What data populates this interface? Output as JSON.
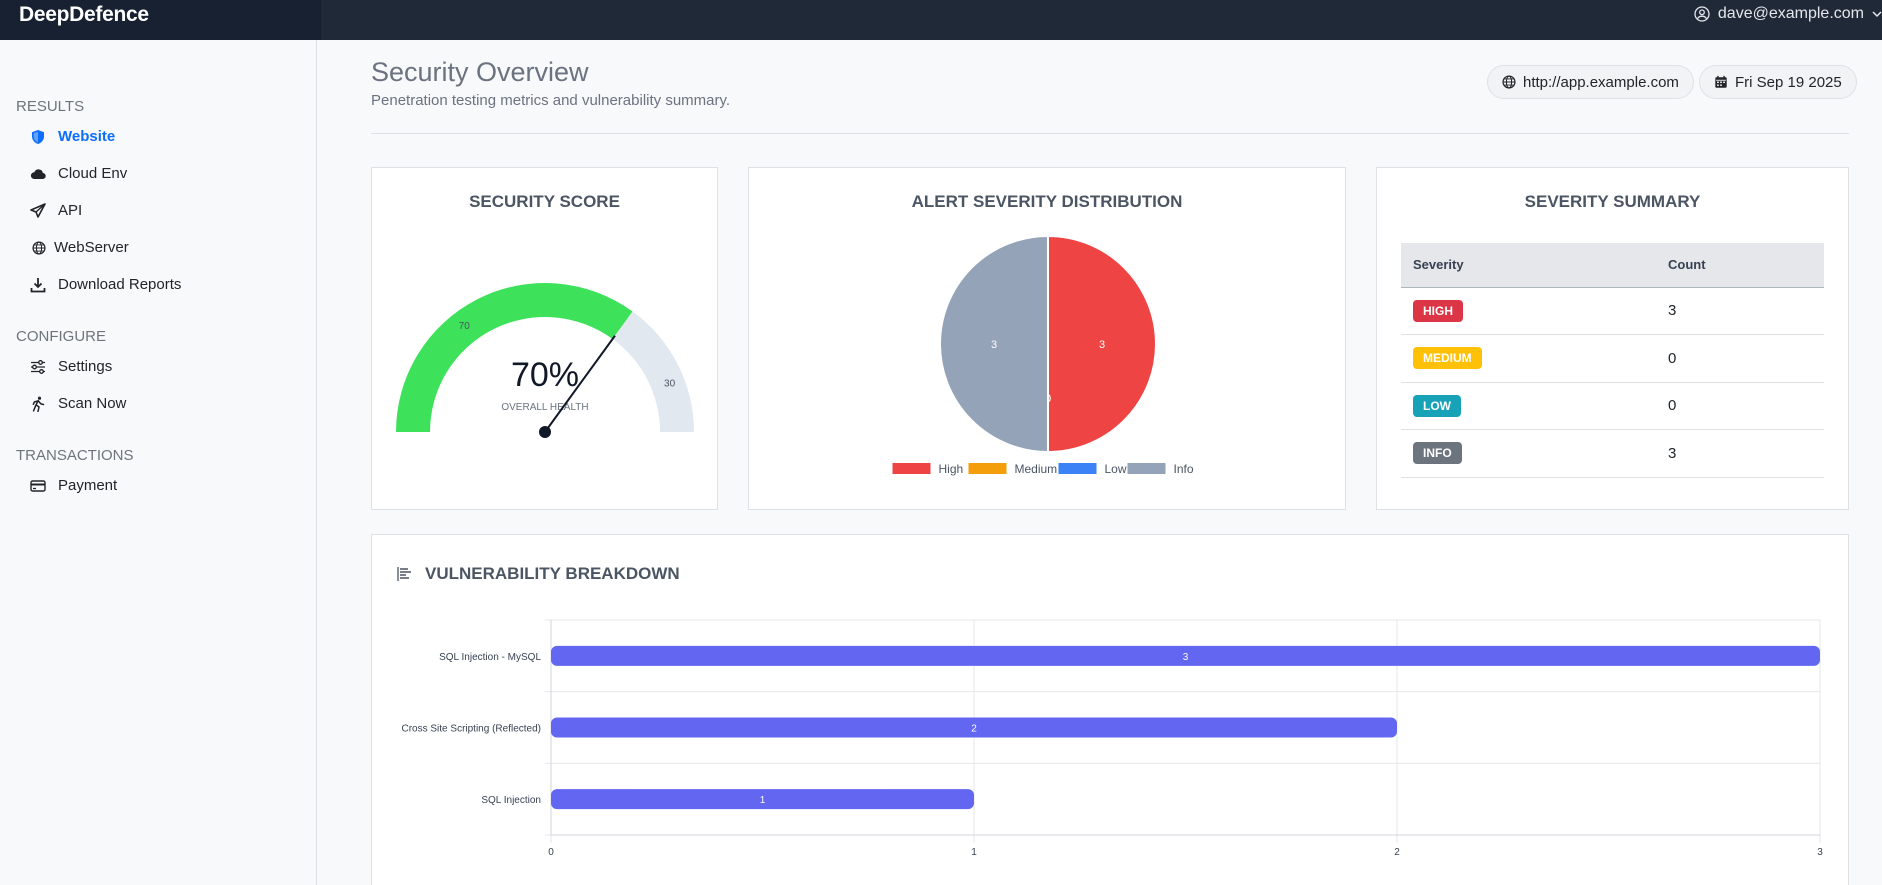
{
  "app": {
    "brand": "DeepDefence",
    "user_email": "dave@example.com"
  },
  "sidebar": {
    "sections": [
      {
        "title": "RESULTS",
        "items": [
          {
            "label": "Website",
            "icon": "shield-icon",
            "active": true
          },
          {
            "label": "Cloud Env",
            "icon": "cloud-icon"
          },
          {
            "label": "API",
            "icon": "send-icon"
          },
          {
            "label": "WebServer",
            "icon": "globe-icon"
          },
          {
            "label": "Download Reports",
            "icon": "download-icon"
          }
        ]
      },
      {
        "title": "CONFIGURE",
        "items": [
          {
            "label": "Settings",
            "icon": "sliders-icon"
          },
          {
            "label": "Scan Now",
            "icon": "running-icon"
          }
        ]
      },
      {
        "title": "TRANSACTIONS",
        "items": [
          {
            "label": "Payment",
            "icon": "credit-card-icon"
          }
        ]
      }
    ]
  },
  "header": {
    "title": "Security Overview",
    "subtitle": "Penetration testing metrics and vulnerability summary.",
    "target_url": "http://app.example.com",
    "date": "Fri Sep 19 2025"
  },
  "score_card": {
    "title": "SECURITY SCORE",
    "score_text": "70%",
    "caption": "OVERALL HEALTH",
    "score": 70,
    "remaining_label": "30",
    "score_label": "70",
    "colors": {
      "fill": "#3de15a",
      "rest": "#e2e8f0"
    }
  },
  "distribution_card": {
    "title": "ALERT SEVERITY DISTRIBUTION",
    "chart_data": {
      "type": "pie",
      "categories": [
        "High",
        "Medium",
        "Low",
        "Info"
      ],
      "values": [
        3,
        0,
        0,
        3
      ],
      "colors": [
        "#ef4444",
        "#f59e0b",
        "#3b82f6",
        "#94a3b8"
      ],
      "legend": "bottom"
    }
  },
  "summary_card": {
    "title": "SEVERITY SUMMARY",
    "columns": [
      "Severity",
      "Count"
    ],
    "rows": [
      {
        "severity": "HIGH",
        "count": "3",
        "color": "#dc3545"
      },
      {
        "severity": "MEDIUM",
        "count": "0",
        "color": "#ffc107"
      },
      {
        "severity": "LOW",
        "count": "0",
        "color": "#17a2b8"
      },
      {
        "severity": "INFO",
        "count": "3",
        "color": "#6c757d"
      }
    ]
  },
  "breakdown": {
    "title": "VULNERABILITY BREAKDOWN",
    "chart_data": {
      "type": "bar",
      "orientation": "horizontal",
      "categories": [
        "SQL Injection - MySQL",
        "Cross Site Scripting (Reflected)",
        "SQL Injection"
      ],
      "values": [
        3,
        2,
        1
      ],
      "xlim": [
        0,
        3
      ],
      "xticks": [
        "0",
        "1",
        "2",
        "3"
      ],
      "grid": true,
      "color": "#6366f1"
    }
  }
}
